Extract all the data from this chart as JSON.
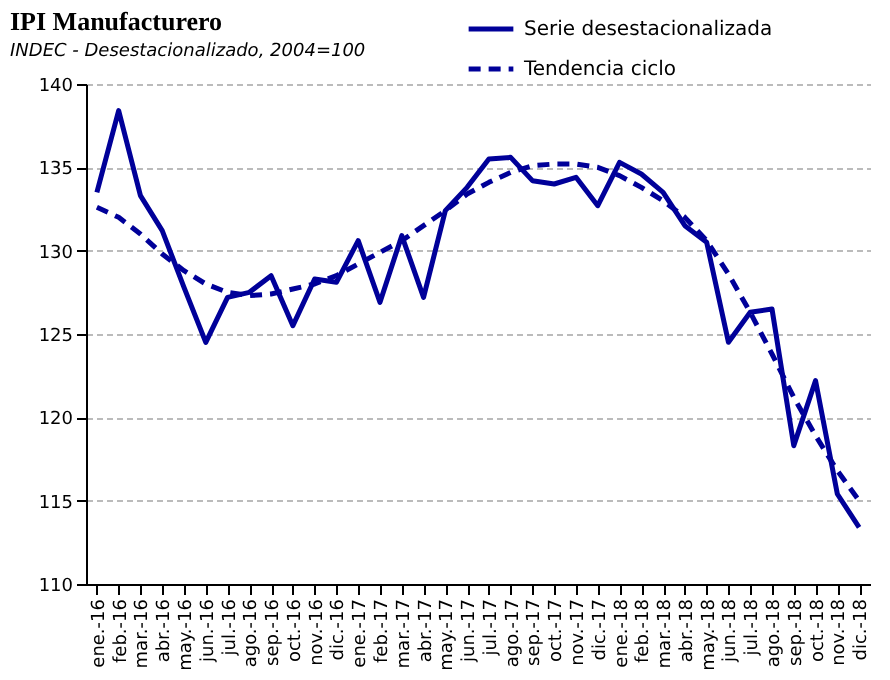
{
  "chart_data": {
    "type": "line",
    "title": "IPI Manufacturero",
    "subtitle": "INDEC - Desestacionalizado, 2004=100",
    "categories": [
      "ene.-16",
      "feb.-16",
      "mar.-16",
      "abr.-16",
      "may.-16",
      "jun.-16",
      "jul.-16",
      "ago.-16",
      "sep.-16",
      "oct.-16",
      "nov.-16",
      "dic.-16",
      "ene.-17",
      "feb.-17",
      "mar.-17",
      "abr.-17",
      "may.-17",
      "jun.-17",
      "jul.-17",
      "ago.-17",
      "sep.-17",
      "oct.-17",
      "nov.-17",
      "dic.-17",
      "ene.-18",
      "feb.-18",
      "mar.-18",
      "abr.-18",
      "may.-18",
      "jun.-18",
      "jul.-18",
      "ago.-18",
      "sep.-18",
      "oct.-18",
      "nov.-18",
      "dic.-18"
    ],
    "series": [
      {
        "name": "Serie desestacionalizada",
        "color": "#000099",
        "line_style": "solid",
        "values": [
          133.5,
          138.4,
          133.3,
          131.2,
          127.8,
          124.5,
          127.2,
          127.5,
          128.5,
          125.5,
          128.3,
          128.1,
          130.6,
          126.9,
          130.9,
          127.2,
          132.4,
          133.8,
          135.5,
          135.6,
          134.2,
          134.0,
          134.4,
          132.7,
          135.3,
          134.6,
          133.5,
          131.5,
          130.5,
          124.5,
          126.3,
          126.5,
          118.3,
          122.2,
          115.4,
          113.4
        ]
      },
      {
        "name": "Tendencia ciclo",
        "color": "#000099",
        "line_style": "dashed",
        "values": [
          132.6,
          132.0,
          131.0,
          129.8,
          128.8,
          128.0,
          127.5,
          127.3,
          127.4,
          127.7,
          128.0,
          128.5,
          129.2,
          129.9,
          130.6,
          131.5,
          132.4,
          133.4,
          134.1,
          134.7,
          135.1,
          135.2,
          135.2,
          135.0,
          134.5,
          133.8,
          133.0,
          132.0,
          130.6,
          128.6,
          126.3,
          123.8,
          121.2,
          118.9,
          116.8,
          115.0
        ]
      }
    ],
    "ylim": [
      110,
      140
    ],
    "yticks": [
      110,
      115,
      120,
      125,
      130,
      135,
      140
    ],
    "grid": "y",
    "legend": "top right",
    "marker": "none"
  }
}
